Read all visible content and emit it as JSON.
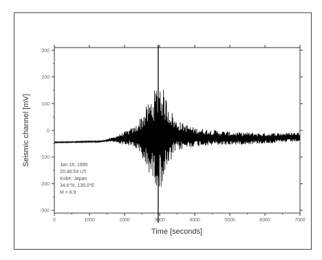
{
  "chart_data": {
    "type": "line",
    "title": "",
    "xlabel": "Time [seconds]",
    "ylabel": "Seismic channel [mV]",
    "xlim": [
      0,
      7000
    ],
    "ylim": [
      -310,
      310
    ],
    "x_ticks": [
      "0",
      "1000",
      "2000",
      "3000",
      "4000",
      "5000",
      "6000",
      "7000"
    ],
    "y_ticks": [
      "300",
      "200",
      "100",
      "0",
      "-100",
      "-200",
      "-300"
    ],
    "grid": false,
    "legend": "none",
    "marker_line_x": 2960,
    "annotation": [
      "Jan 16, 1995",
      "20:46:54 UT",
      "Kobe, Japan",
      "34.6°N, 135.0°E",
      "M = 6.9"
    ],
    "series": [
      {
        "color": "#000000",
        "envelope": [
          {
            "x": 0,
            "amp": 2,
            "base": -45
          },
          {
            "x": 1300,
            "amp": 3,
            "base": -42
          },
          {
            "x": 1650,
            "amp": 8,
            "base": -35
          },
          {
            "x": 2000,
            "amp": 25,
            "base": -30
          },
          {
            "x": 2300,
            "amp": 40,
            "base": -25
          },
          {
            "x": 2600,
            "amp": 110,
            "base": -25
          },
          {
            "x": 2800,
            "amp": 160,
            "base": -25
          },
          {
            "x": 3000,
            "amp": 210,
            "base": -15
          },
          {
            "x": 3200,
            "amp": 140,
            "base": -20
          },
          {
            "x": 3450,
            "amp": 60,
            "base": -20
          },
          {
            "x": 4000,
            "amp": 35,
            "base": -25
          },
          {
            "x": 5000,
            "amp": 25,
            "base": -30
          },
          {
            "x": 6000,
            "amp": 20,
            "base": -30
          },
          {
            "x": 7000,
            "amp": 18,
            "base": -25
          }
        ]
      }
    ]
  }
}
